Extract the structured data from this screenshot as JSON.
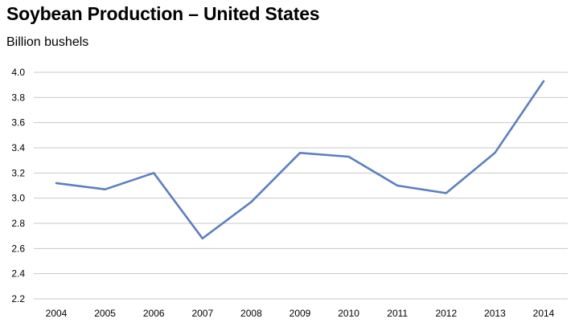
{
  "chart_data": {
    "type": "line",
    "title": "Soybean Production – United States",
    "ylabel": "Billion bushels",
    "xlabel": "",
    "categories": [
      "2004",
      "2005",
      "2006",
      "2007",
      "2008",
      "2009",
      "2010",
      "2011",
      "2012",
      "2013",
      "2014"
    ],
    "series": [
      {
        "values": [
          3.12,
          3.07,
          3.2,
          2.68,
          2.97,
          3.36,
          3.33,
          3.1,
          3.04,
          3.36,
          3.93
        ]
      }
    ],
    "ylim": [
      2.2,
      4.0
    ],
    "yticks": [
      "2.2",
      "2.4",
      "2.6",
      "2.8",
      "3.0",
      "3.2",
      "3.4",
      "3.6",
      "3.8",
      "4.0"
    ],
    "grid": true,
    "line_color": "#5b7fc4",
    "grid_color": "#c8c8c8"
  }
}
